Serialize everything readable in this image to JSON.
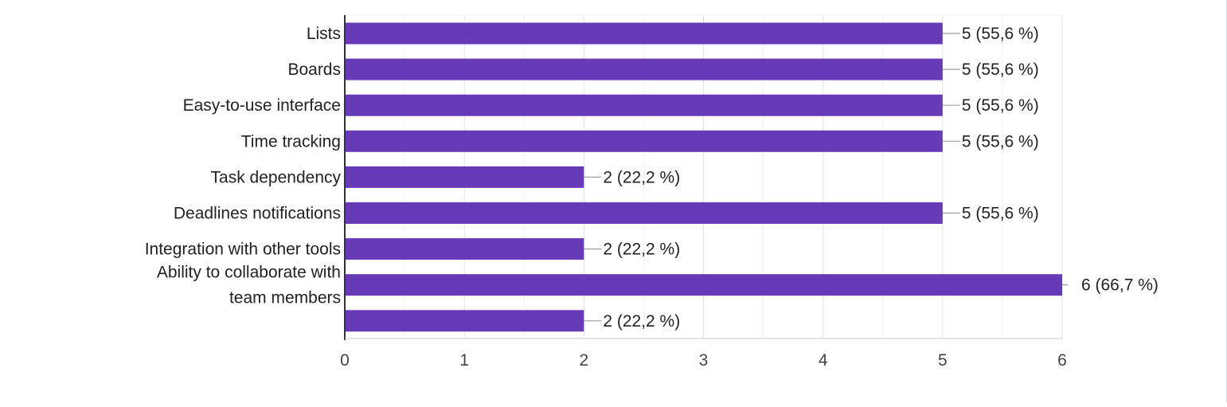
{
  "chart_data": {
    "type": "bar",
    "orientation": "horizontal",
    "title": "",
    "xlabel": "",
    "ylabel": "",
    "categories": [
      "Lists",
      "Boards",
      "Easy-to-use interface",
      "Time tracking",
      "Task dependency",
      "Deadlines notifications",
      "Integration with other tools",
      "Ability to collaborate with team members",
      ""
    ],
    "values": [
      5,
      5,
      5,
      5,
      2,
      5,
      2,
      6,
      2
    ],
    "data_labels": [
      "5 (55,6 %)",
      "5 (55,6 %)",
      "5 (55,6 %)",
      "5 (55,6 %)",
      "2 (22,2 %)",
      "5 (55,6 %)",
      "2 (22,2 %)",
      "6 (66,7 %)",
      "2 (22,2 %)"
    ],
    "xlim": [
      0,
      6
    ],
    "x_ticks": [
      "0",
      "1",
      "2",
      "3",
      "4",
      "5",
      "6"
    ],
    "grid": true,
    "legend": "none",
    "colors": {
      "bar": "#673ab7",
      "grid": "#e8e8e8",
      "axis": "#333333",
      "text": "#222222",
      "tick_text": "#444444",
      "leader": "#9e9e9e"
    }
  }
}
